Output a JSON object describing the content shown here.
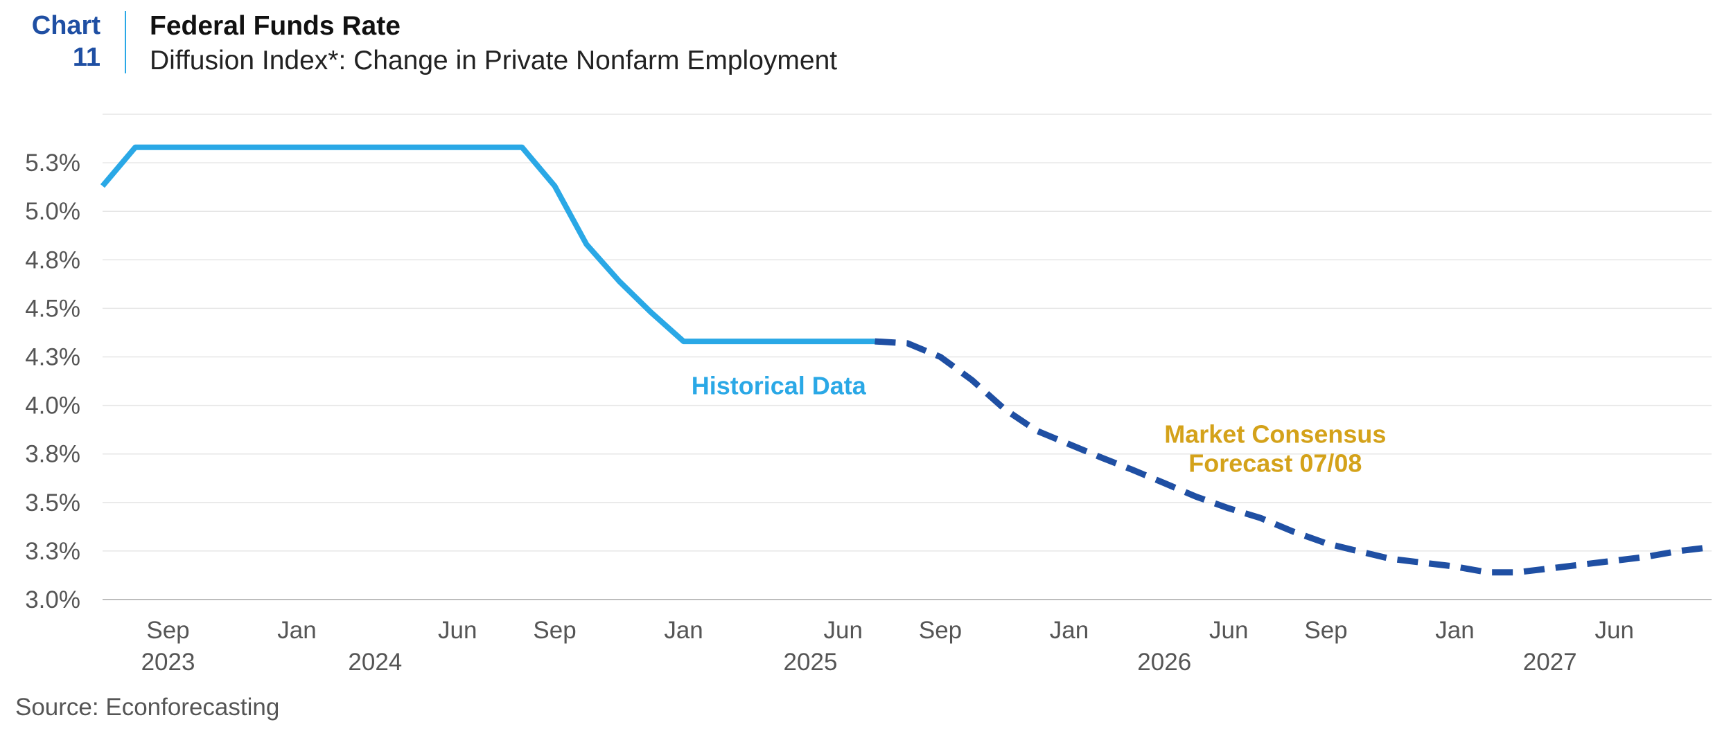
{
  "header": {
    "chart_label_line1": "Chart",
    "chart_label_line2": "11",
    "title": "Federal Funds Rate",
    "subtitle": "Diffusion Index*: Change in Private Nonfarm Employment"
  },
  "source": "Source: Econforecasting",
  "chart_data": {
    "type": "line",
    "title": "Federal Funds Rate",
    "subtitle": "Diffusion Index*: Change in Private Nonfarm Employment",
    "xlabel": "",
    "ylabel": "",
    "ylim": [
      3.0,
      5.5
    ],
    "y_ticks": [
      {
        "value": 3.0,
        "label": "3.0%"
      },
      {
        "value": 3.25,
        "label": "3.3%"
      },
      {
        "value": 3.5,
        "label": "3.5%"
      },
      {
        "value": 3.75,
        "label": "3.8%"
      },
      {
        "value": 4.0,
        "label": "4.0%"
      },
      {
        "value": 4.25,
        "label": "4.3%"
      },
      {
        "value": 4.5,
        "label": "4.5%"
      },
      {
        "value": 4.75,
        "label": "4.8%"
      },
      {
        "value": 5.0,
        "label": "5.0%"
      },
      {
        "value": 5.25,
        "label": "5.3%"
      },
      {
        "value": 5.5,
        "label": ""
      }
    ],
    "xlim": [
      "2023-07-01",
      "2027-09-01"
    ],
    "x_ticks": [
      {
        "date": "2023-09-01",
        "month": "Sep",
        "year": "2023"
      },
      {
        "date": "2024-01-01",
        "month": "Jan",
        "year": ""
      },
      {
        "date": "2024-06-01",
        "month": "Jun",
        "year": ""
      },
      {
        "date": "2024-09-01",
        "month": "Sep",
        "year": ""
      },
      {
        "date": "2025-01-01",
        "month": "Jan",
        "year": ""
      },
      {
        "date": "2025-06-01",
        "month": "Jun",
        "year": ""
      },
      {
        "date": "2025-09-01",
        "month": "Sep",
        "year": ""
      },
      {
        "date": "2026-01-01",
        "month": "Jan",
        "year": ""
      },
      {
        "date": "2026-06-01",
        "month": "Jun",
        "year": ""
      },
      {
        "date": "2026-09-01",
        "month": "Sep",
        "year": ""
      },
      {
        "date": "2027-01-01",
        "month": "Jan",
        "year": ""
      },
      {
        "date": "2027-06-01",
        "month": "Jun",
        "year": ""
      }
    ],
    "year_labels": [
      {
        "date": "2024-03-15",
        "label": "2024"
      },
      {
        "date": "2025-05-01",
        "label": "2025"
      },
      {
        "date": "2026-04-01",
        "label": "2026"
      },
      {
        "date": "2027-04-01",
        "label": "2027"
      }
    ],
    "grid": true,
    "series": [
      {
        "name": "Historical Data",
        "color": "#2aa8e6",
        "style": "solid",
        "points": [
          [
            "2023-07-01",
            5.13
          ],
          [
            "2023-08-01",
            5.33
          ],
          [
            "2024-08-01",
            5.33
          ],
          [
            "2024-09-01",
            5.13
          ],
          [
            "2024-10-01",
            4.83
          ],
          [
            "2024-11-01",
            4.64
          ],
          [
            "2024-12-01",
            4.48
          ],
          [
            "2025-01-01",
            4.33
          ],
          [
            "2025-07-01",
            4.33
          ]
        ]
      },
      {
        "name": "Market Consensus Forecast 07/08",
        "color": "#1f4fa3",
        "style": "dashed",
        "points": [
          [
            "2025-07-01",
            4.33
          ],
          [
            "2025-08-01",
            4.32
          ],
          [
            "2025-09-01",
            4.25
          ],
          [
            "2025-10-01",
            4.13
          ],
          [
            "2025-11-01",
            3.98
          ],
          [
            "2025-12-01",
            3.87
          ],
          [
            "2026-01-01",
            3.8
          ],
          [
            "2026-02-01",
            3.73
          ],
          [
            "2026-03-01",
            3.67
          ],
          [
            "2026-04-01",
            3.6
          ],
          [
            "2026-05-01",
            3.53
          ],
          [
            "2026-06-01",
            3.47
          ],
          [
            "2026-07-01",
            3.42
          ],
          [
            "2026-08-01",
            3.35
          ],
          [
            "2026-09-01",
            3.29
          ],
          [
            "2026-10-01",
            3.25
          ],
          [
            "2026-11-01",
            3.21
          ],
          [
            "2026-12-01",
            3.19
          ],
          [
            "2027-01-01",
            3.17
          ],
          [
            "2027-02-01",
            3.14
          ],
          [
            "2027-03-01",
            3.14
          ],
          [
            "2027-04-01",
            3.16
          ],
          [
            "2027-05-01",
            3.18
          ],
          [
            "2027-06-01",
            3.2
          ],
          [
            "2027-07-01",
            3.22
          ],
          [
            "2027-08-01",
            3.25
          ],
          [
            "2027-09-01",
            3.27
          ]
        ]
      }
    ],
    "annotations": [
      {
        "text": "Historical Data",
        "color": "#2aa8e6",
        "date": "2025-04-01",
        "value": 4.1
      },
      {
        "text": "Market Consensus",
        "color": "#d4a21a",
        "date": "2026-07-15",
        "value": 3.85
      },
      {
        "text": "Forecast 07/08",
        "color": "#d4a21a",
        "date": "2026-07-15",
        "value": 3.7
      }
    ],
    "legend": "none"
  }
}
